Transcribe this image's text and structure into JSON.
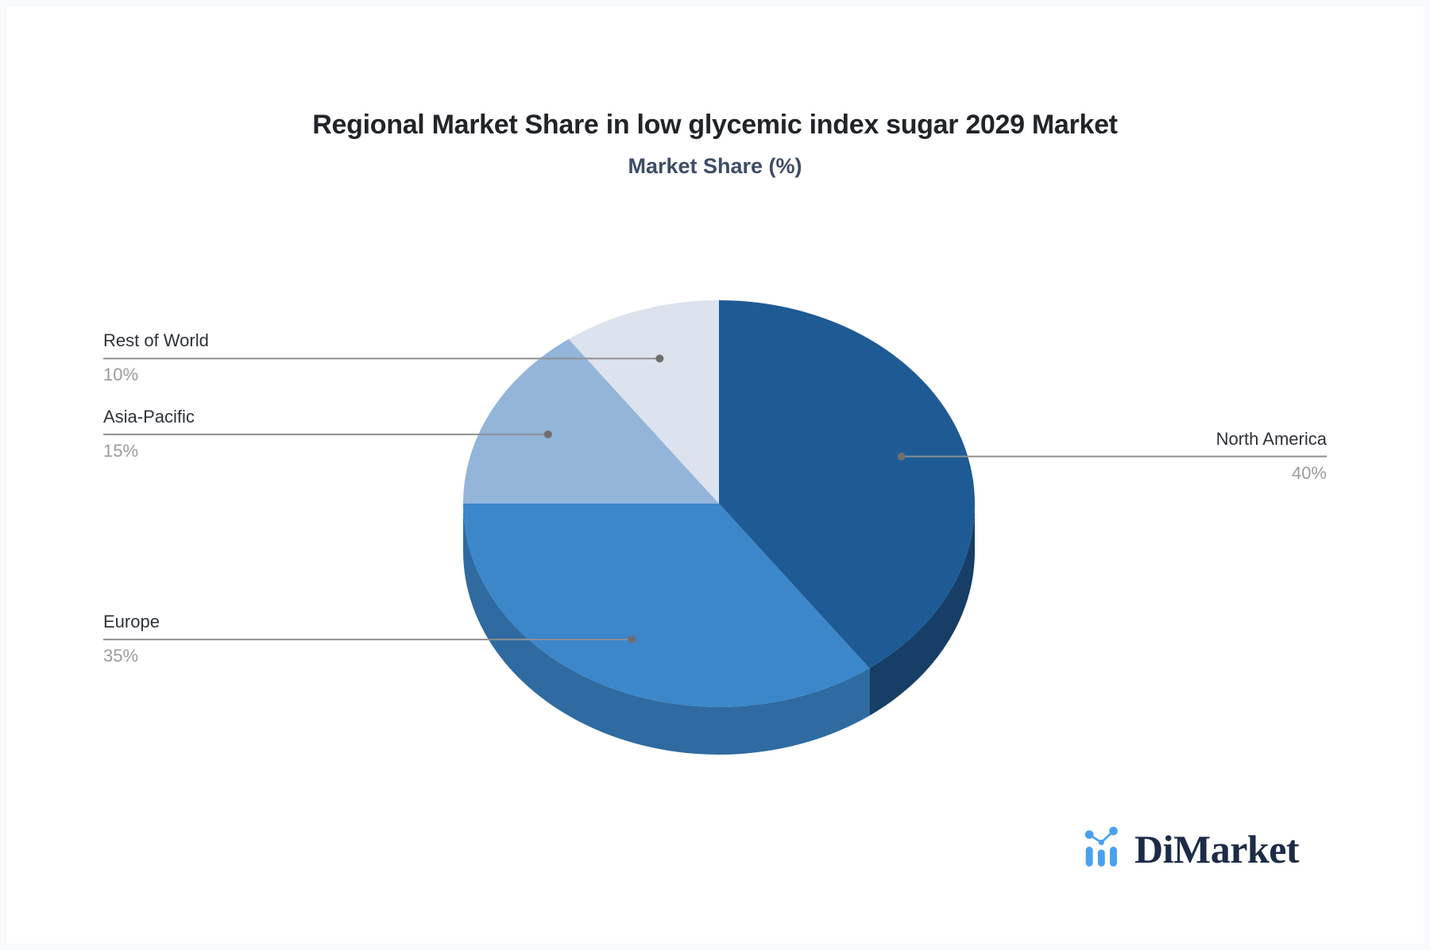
{
  "header": {
    "title": "Regional Market Share in low glycemic index sugar 2029 Market",
    "subtitle": "Market Share (%)"
  },
  "chart_data": {
    "type": "pie",
    "title": "Regional Market Share in low glycemic index sugar 2029 Market",
    "subtitle": "Market Share (%)",
    "unit": "percent",
    "effect": "3d",
    "start_angle_deg": 0,
    "direction": "clockwise",
    "legend_position": "none",
    "categories": [
      "North America",
      "Europe",
      "Asia-Pacific",
      "Rest of World"
    ],
    "values": [
      40,
      35,
      15,
      10
    ],
    "slices": [
      {
        "label": "North America",
        "value": 40,
        "pct_label": "40%",
        "color": "#1e5b94",
        "side_color": "#163e67",
        "label_side": "right"
      },
      {
        "label": "Europe",
        "value": 35,
        "pct_label": "35%",
        "color": "#3b87ca",
        "side_color": "#2f6ba1",
        "label_side": "left"
      },
      {
        "label": "Asia-Pacific",
        "value": 15,
        "pct_label": "15%",
        "color": "#93b5d9",
        "side_color": "#7d9cc0",
        "label_side": "left"
      },
      {
        "label": "Rest of World",
        "value": 10,
        "pct_label": "10%",
        "color": "#dde3ee",
        "side_color": "#c2cbd9",
        "label_side": "left"
      }
    ],
    "leader_line_color": "#8f8f8f",
    "leader_dot_color": "#6f6f6f"
  },
  "branding": {
    "logo_text": "DiMarket",
    "logo_icon": "bar-line-chart-icon",
    "logo_icon_color": "#4aa0f0",
    "logo_text_color": "#1c2b47"
  }
}
